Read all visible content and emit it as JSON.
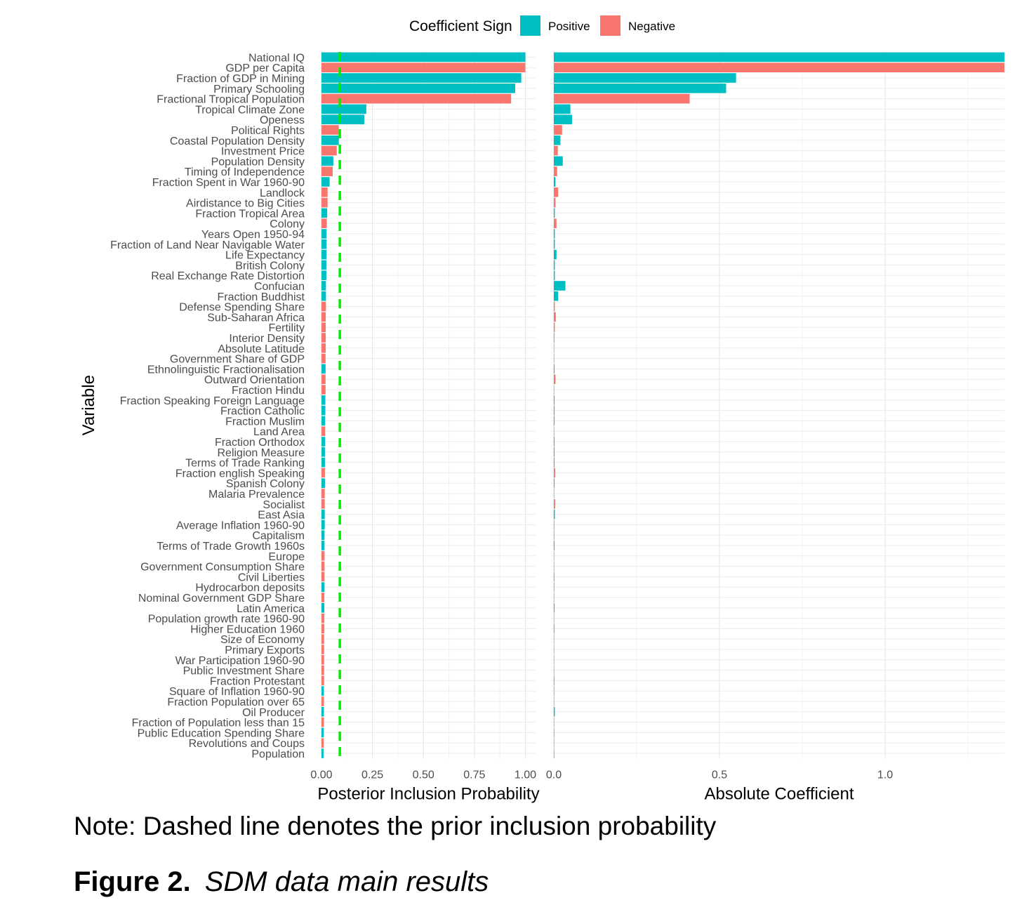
{
  "chart_data": {
    "type": "bar",
    "orientation": "horizontal",
    "legend": {
      "title": "Coefficient Sign",
      "position": "top",
      "entries": [
        {
          "label": "Positive",
          "color": "#00BFC4"
        },
        {
          "label": "Negative",
          "color": "#F8766D"
        }
      ]
    },
    "ylabel": "Variable",
    "grid": true,
    "categories": [
      "National IQ",
      "GDP per Capita",
      "Fraction of GDP in Mining",
      "Primary Schooling",
      "Fractional Tropical Population",
      "Tropical Climate Zone",
      "Openess",
      "Political Rights",
      "Coastal Population Density",
      "Investment Price",
      "Population Density",
      "Timing of Independence",
      "Fraction Spent in War 1960-90",
      "Landlock",
      "Airdistance to Big Cities",
      "Fraction Tropical Area",
      "Colony",
      "Years Open 1950-94",
      "Fraction of Land Near Navigable Water",
      "Life Expectancy",
      "British Colony",
      "Real Exchange Rate Distortion",
      "Confucian",
      "Fraction Buddhist",
      "Defense Spending Share",
      "Sub-Saharan Africa",
      "Fertility",
      "Interior Density",
      "Absolute Latitude",
      "Government Share of GDP",
      "Ethnolinguistic Fractionalisation",
      "Outward Orientation",
      "Fraction Hindu",
      "Fraction Speaking Foreign Language",
      "Fraction Catholic",
      "Fraction Muslim",
      "Land Area",
      "Fraction Orthodox",
      "Religion Measure",
      "Terms of Trade Ranking",
      "Fraction english Speaking",
      "Spanish Colony",
      "Malaria Prevalence",
      "Socialist",
      "East Asia",
      "Average Inflation 1960-90",
      "Capitalism",
      "Terms of Trade Growth 1960s",
      "Europe",
      "Government Consumption Share",
      "Civil Liberties",
      "Hydrocarbon deposits",
      "Nominal Government GDP Share",
      "Latin America",
      "Population growth rate 1960-90",
      "Higher Education 1960",
      "Size of Economy",
      "Primary Exports",
      "War Participation 1960-90",
      "Public Investment Share",
      "Fraction Protestant",
      "Square of Inflation 1960-90",
      "Fraction Population over 65",
      "Oil Producer",
      "Fraction of Population less than 15",
      "Public Education Spending Share",
      "Revolutions and Coups",
      "Population"
    ],
    "sign": [
      "Positive",
      "Negative",
      "Positive",
      "Positive",
      "Negative",
      "Positive",
      "Positive",
      "Negative",
      "Positive",
      "Negative",
      "Positive",
      "Negative",
      "Positive",
      "Negative",
      "Negative",
      "Positive",
      "Negative",
      "Positive",
      "Positive",
      "Positive",
      "Positive",
      "Positive",
      "Positive",
      "Positive",
      "Negative",
      "Negative",
      "Negative",
      "Negative",
      "Negative",
      "Negative",
      "Positive",
      "Negative",
      "Negative",
      "Positive",
      "Positive",
      "Positive",
      "Negative",
      "Positive",
      "Positive",
      "Positive",
      "Negative",
      "Positive",
      "Negative",
      "Negative",
      "Positive",
      "Positive",
      "Positive",
      "Positive",
      "Negative",
      "Negative",
      "Negative",
      "Positive",
      "Negative",
      "Positive",
      "Negative",
      "Negative",
      "Negative",
      "Negative",
      "Negative",
      "Negative",
      "Negative",
      "Positive",
      "Negative",
      "Positive",
      "Negative",
      "Positive",
      "Negative",
      "Positive"
    ],
    "panels": [
      {
        "xlabel": "Posterior Inclusion Probability",
        "xlim": [
          0,
          1.05
        ],
        "ticks": [
          0,
          0.25,
          0.5,
          0.75,
          1.0
        ],
        "tick_labels": [
          "0.00",
          "0.25",
          "0.50",
          "0.75",
          "1.00"
        ],
        "reference_line": {
          "x": 0.09,
          "style": "dashed",
          "color": "#00EE00",
          "meaning": "prior inclusion probability"
        },
        "values": [
          1.0,
          1.0,
          0.98,
          0.95,
          0.93,
          0.22,
          0.21,
          0.085,
          0.085,
          0.075,
          0.058,
          0.055,
          0.04,
          0.03,
          0.03,
          0.028,
          0.026,
          0.025,
          0.025,
          0.025,
          0.024,
          0.024,
          0.022,
          0.022,
          0.022,
          0.021,
          0.021,
          0.021,
          0.021,
          0.02,
          0.02,
          0.02,
          0.02,
          0.019,
          0.019,
          0.018,
          0.018,
          0.018,
          0.017,
          0.017,
          0.017,
          0.017,
          0.016,
          0.016,
          0.016,
          0.016,
          0.015,
          0.015,
          0.015,
          0.015,
          0.015,
          0.015,
          0.014,
          0.014,
          0.014,
          0.014,
          0.013,
          0.013,
          0.013,
          0.013,
          0.013,
          0.012,
          0.012,
          0.012,
          0.012,
          0.011,
          0.011,
          0.01
        ]
      },
      {
        "xlabel": "Absolute Coefficient",
        "xlim": [
          0,
          1.36
        ],
        "ticks": [
          0,
          0.5,
          1.0
        ],
        "tick_labels": [
          "0.0",
          "0.5",
          "1.0"
        ],
        "values": [
          1.36,
          1.36,
          0.55,
          0.52,
          0.41,
          0.05,
          0.055,
          0.025,
          0.02,
          0.012,
          0.027,
          0.01,
          0.005,
          0.013,
          0.005,
          0.003,
          0.008,
          0.003,
          0.003,
          0.008,
          0.003,
          0.003,
          0.035,
          0.013,
          0.003,
          0.006,
          0.003,
          0.002,
          0.001,
          0.001,
          0.002,
          0.005,
          0.001,
          0.002,
          0.002,
          0.002,
          0.001,
          0.002,
          0.002,
          0.002,
          0.004,
          0.002,
          0.001,
          0.004,
          0.003,
          0.001,
          0.001,
          0.002,
          0.001,
          0.001,
          0.002,
          0.001,
          0.001,
          0.002,
          0.001,
          0.002,
          0.001,
          0.001,
          0.001,
          0.001,
          0.002,
          0.001,
          0.001,
          0.003,
          0.001,
          0.001,
          0.001,
          0.001
        ]
      }
    ]
  },
  "note": "Note: Dashed line denotes the prior inclusion probability",
  "caption": {
    "label": "Figure 2.",
    "title": "SDM data main results"
  }
}
